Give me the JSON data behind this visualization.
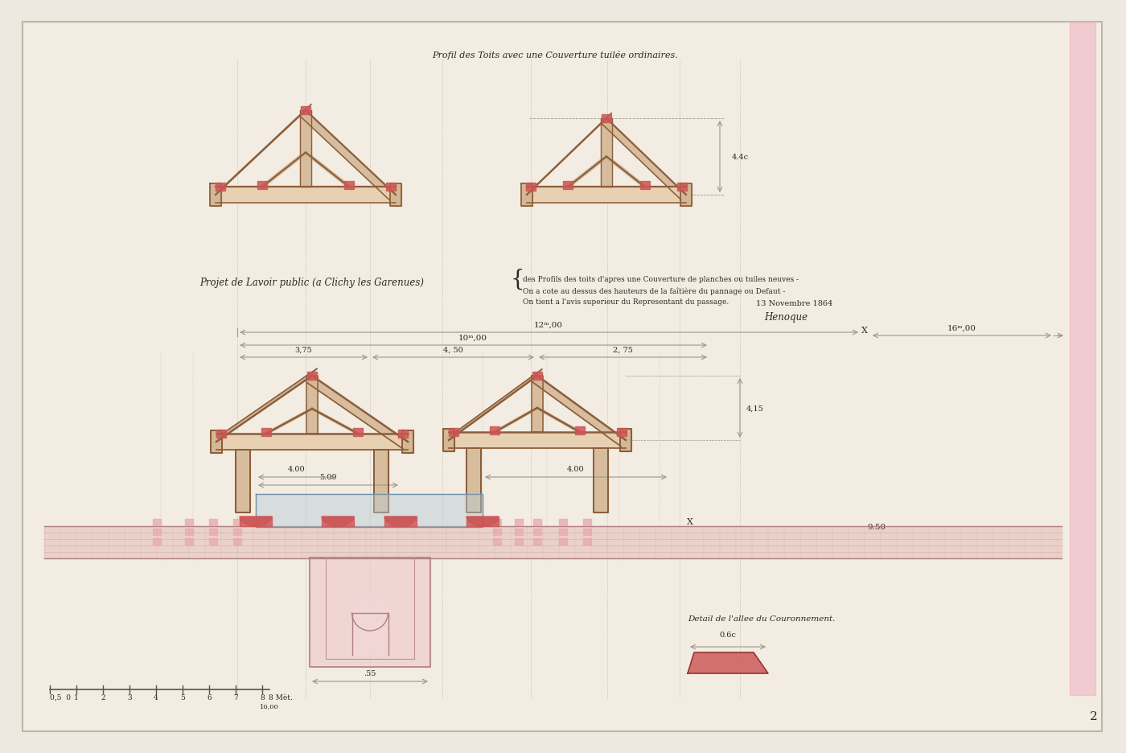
{
  "bg_color": "#ede8e0",
  "paper_color": "#ede8e0",
  "wood_fill": "#d4b896",
  "wood_edge": "#8B5E3C",
  "wood_light": "#e8d0b0",
  "pink_fill": "#e8aaaa",
  "red_accent": "#cc5555",
  "blue_fill": "#b8ccd8",
  "dim_color": "#999988",
  "text_color": "#2a2a22",
  "border_pink": "#e090a0",
  "title1": "Profil des Toits avec une Couverture tuilée ordinaires.",
  "title2": "Projet de Lavoir public (a Clichy les Garenues)",
  "note1": "des Profils des toits d'apres une Couverture de planches ou tuiles neuves -",
  "note2": "On a cote au dessus des hauteurs de la faîtière du pannage ou Defaut -",
  "note3": "On tient a l'avis superieur du Representant du passage.",
  "date": "13 Novembre 1864",
  "sig": "Henoque",
  "detail_label": "Detail de l'allee du Couronnement.",
  "dim_12m": "12ᵐ,00",
  "dim_16m": "16ᵐ,00",
  "dim_10m": "10ᵐ,00",
  "dim_375": "3,75",
  "dim_450": "4, 50",
  "dim_275": "2, 75",
  "dim_415": "4,15",
  "dim_500": "5.00",
  "dim_400a": "4.00",
  "dim_400b": "4.00",
  "dim_950": "9.50",
  "dim_44c": "4.4c",
  "dim_06c": "0.6c"
}
